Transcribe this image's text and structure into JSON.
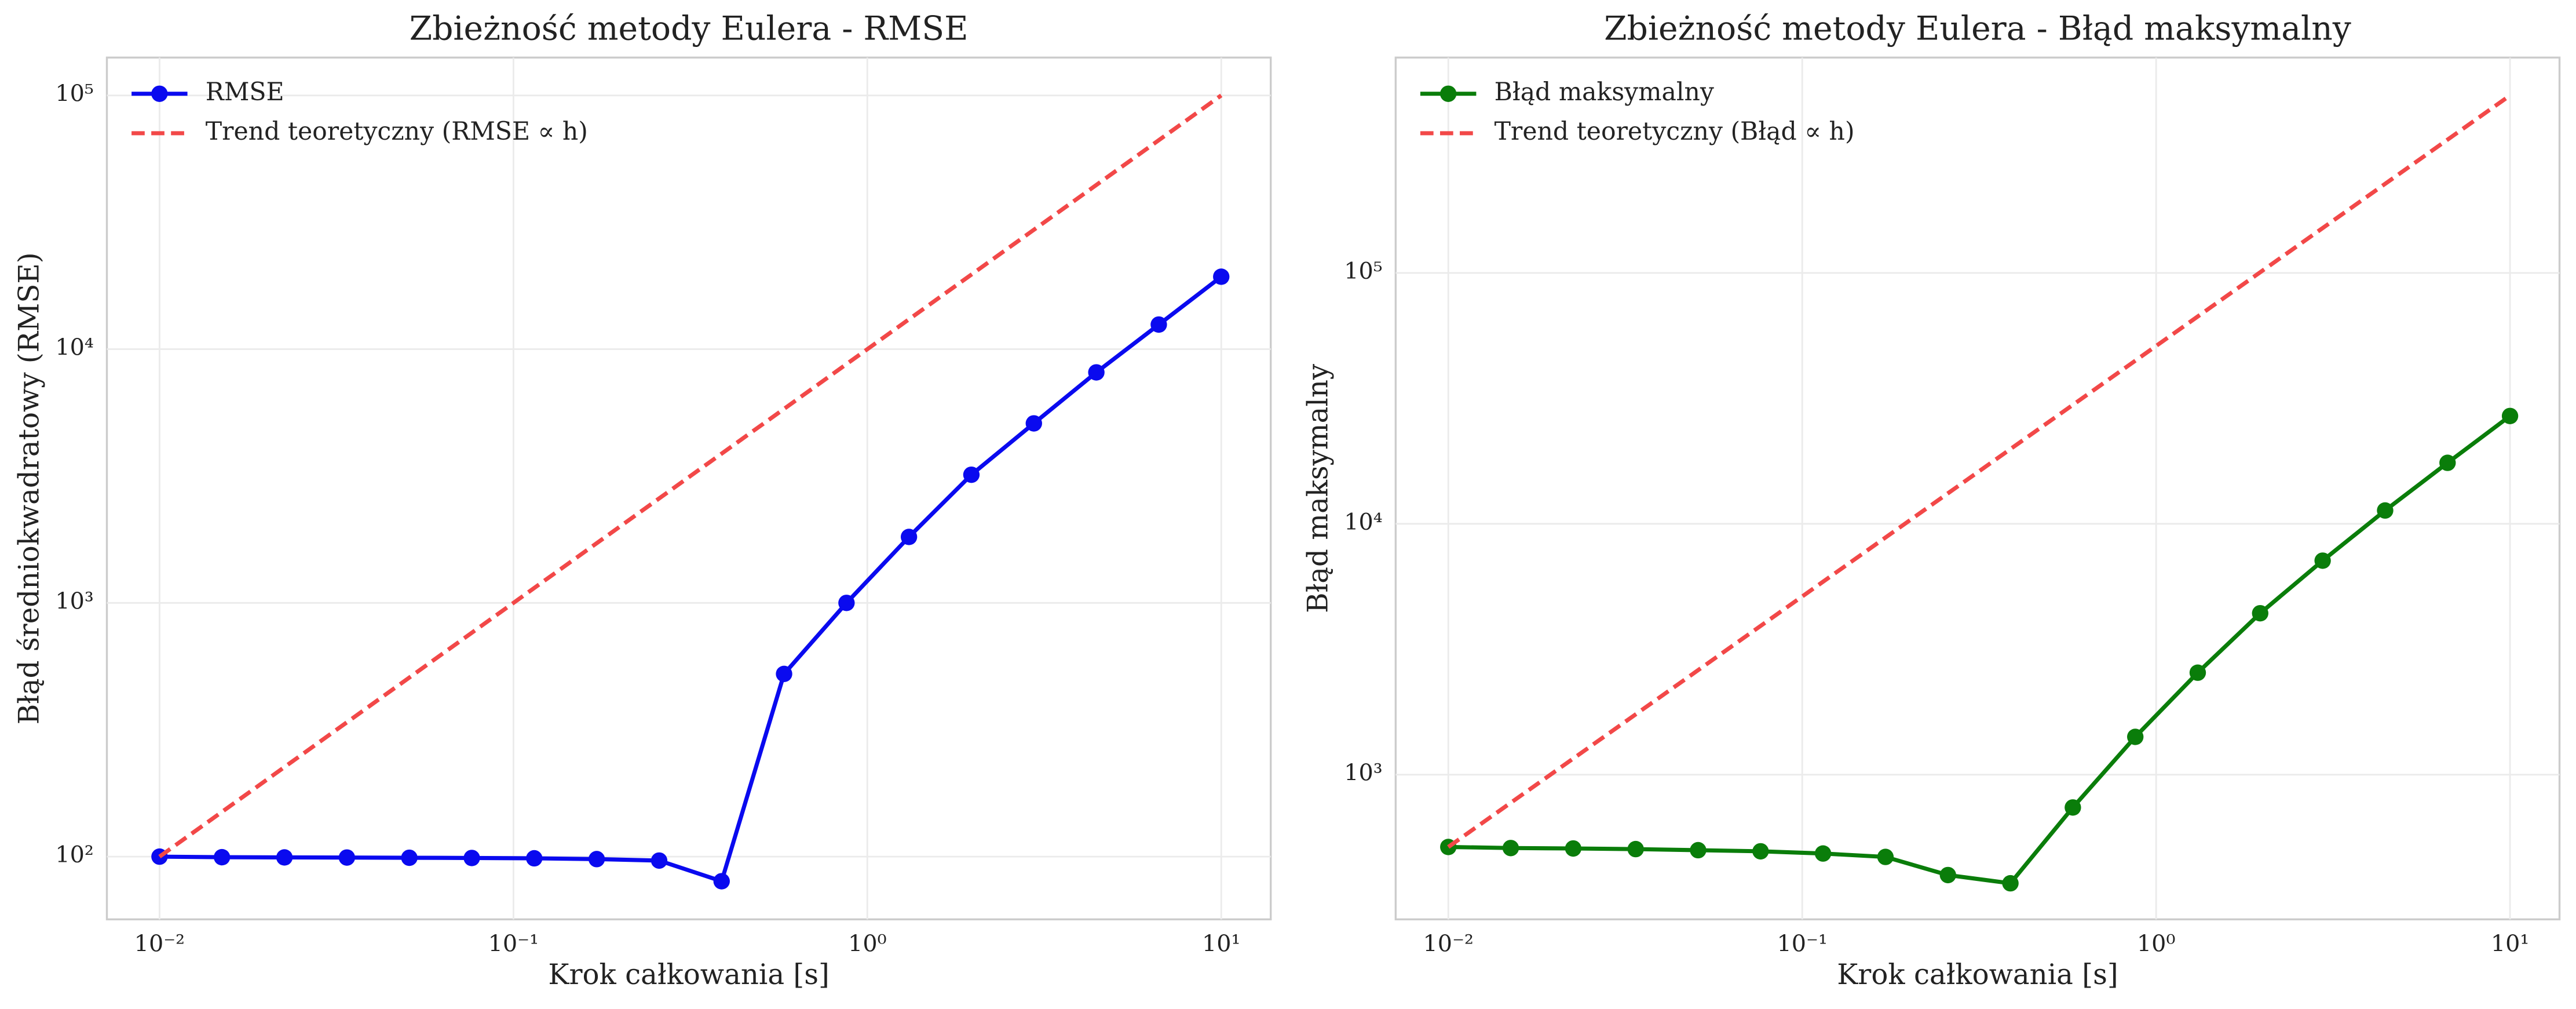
{
  "chart_data": [
    {
      "type": "line",
      "title": "Zbieżność metody Eulera - RMSE",
      "xlabel": "Krok całkowania [s]",
      "ylabel": "Błąd średniokwadratowy (RMSE)",
      "xscale": "log",
      "yscale": "log",
      "grid": true,
      "legend": "upper left",
      "xlim": [
        0.0071,
        13.8
      ],
      "ylim": [
        56.6,
        141000
      ],
      "xticks": [
        {
          "value": 0.01,
          "label": "10⁻²"
        },
        {
          "value": 0.1,
          "label": "10⁻¹"
        },
        {
          "value": 1,
          "label": "10⁰"
        },
        {
          "value": 10,
          "label": "10¹"
        }
      ],
      "yticks": [
        {
          "value": 100,
          "label": "10²"
        },
        {
          "value": 1000,
          "label": "10³"
        },
        {
          "value": 10000,
          "label": "10⁴"
        },
        {
          "value": 100000,
          "label": "10⁵"
        }
      ],
      "series": [
        {
          "name": "RMSE",
          "color": "#0a0aef",
          "linestyle": "solid",
          "marker": "circle",
          "x": [
            0.01,
            0.01501,
            0.02254,
            0.03384,
            0.0508,
            0.07627,
            0.1145,
            0.1719,
            0.2581,
            0.3875,
            0.5817,
            0.8733,
            1.311,
            1.968,
            2.955,
            4.437,
            6.661,
            10
          ],
          "values": [
            100,
            99.5,
            99.3,
            99.2,
            99,
            98.8,
            98.5,
            97.8,
            96.5,
            80,
            525,
            1000,
            1820,
            3200,
            5100,
            8100,
            12500,
            19300
          ]
        },
        {
          "name": "Trend teoretyczny (RMSE ∝ h)",
          "color": "#f24848",
          "linestyle": "dashed",
          "x": [
            0.01,
            10
          ],
          "values": [
            100,
            100000
          ]
        }
      ]
    },
    {
      "type": "line",
      "title": "Zbieżność metody Eulera - Błąd maksymalny",
      "xlabel": "Krok całkowania [s]",
      "ylabel": "Błąd maksymalny",
      "xscale": "log",
      "yscale": "log",
      "grid": true,
      "legend": "upper left",
      "xlim": [
        0.0071,
        13.8
      ],
      "ylim": [
        265,
        722000
      ],
      "xticks": [
        {
          "value": 0.01,
          "label": "10⁻²"
        },
        {
          "value": 0.1,
          "label": "10⁻¹"
        },
        {
          "value": 1,
          "label": "10⁰"
        },
        {
          "value": 10,
          "label": "10¹"
        }
      ],
      "yticks": [
        {
          "value": 1000,
          "label": "10³"
        },
        {
          "value": 10000,
          "label": "10⁴"
        },
        {
          "value": 100000,
          "label": "10⁵"
        }
      ],
      "series": [
        {
          "name": "Błąd maksymalny",
          "color": "#0a7d0a",
          "linestyle": "solid",
          "marker": "circle",
          "x": [
            0.01,
            0.01501,
            0.02254,
            0.03384,
            0.0508,
            0.07627,
            0.1145,
            0.1719,
            0.2581,
            0.3875,
            0.5817,
            0.8733,
            1.311,
            1.968,
            2.955,
            4.437,
            6.661,
            10
          ],
          "values": [
            515,
            510,
            508,
            505,
            500,
            495,
            485,
            470,
            398,
            369,
            740,
            1415,
            2550,
            4400,
            7130,
            11300,
            17500,
            26900
          ]
        },
        {
          "name": "Trend teoretyczny (Błąd ∝ h)",
          "color": "#f24848",
          "linestyle": "dashed",
          "x": [
            0.01,
            10
          ],
          "values": [
            515,
            510000
          ]
        }
      ]
    }
  ]
}
